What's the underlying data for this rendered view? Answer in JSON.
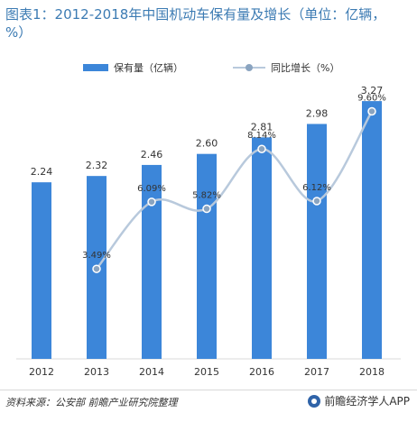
{
  "title": "图表1：2012-2018年中国机动车保有量及增长（单位：亿辆，%）",
  "source": "资料来源：公安部 前瞻产业研究院整理",
  "brand": "前瞻经济学人APP",
  "colors": {
    "bar": "#3c86d9",
    "line": "#b8c9dc",
    "marker": "#8aa4c0",
    "title": "#3c7bb3"
  },
  "chart_data": {
    "type": "bar",
    "categories": [
      "2012",
      "2013",
      "2014",
      "2015",
      "2016",
      "2017",
      "2018"
    ],
    "series": [
      {
        "name": "保有量（亿辆）",
        "type": "bar",
        "values": [
          2.24,
          2.32,
          2.46,
          2.6,
          2.81,
          2.98,
          3.27
        ],
        "labels": [
          "2.24",
          "2.32",
          "2.46",
          "2.60",
          "2.81",
          "2.98",
          "3.27"
        ]
      },
      {
        "name": "同比增长（%）",
        "type": "line",
        "values": [
          null,
          3.49,
          6.09,
          5.82,
          8.14,
          6.12,
          9.6
        ],
        "labels": [
          "",
          "3.49%",
          "6.09%",
          "5.82%",
          "8.14%",
          "6.12%",
          "9.60%"
        ]
      }
    ],
    "bar_ylim": [
      0,
      3.5
    ],
    "line_ylim": [
      0,
      10.7
    ],
    "legend_position": "top",
    "grid": false
  }
}
